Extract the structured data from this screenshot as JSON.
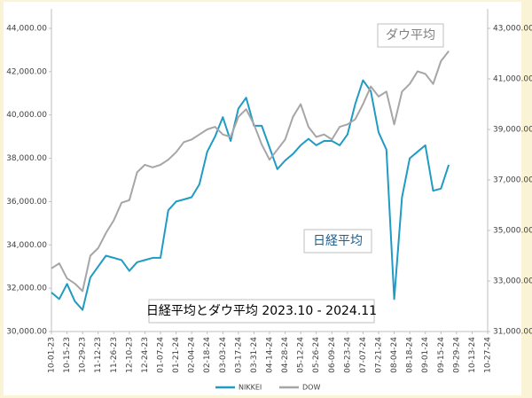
{
  "chart_data": {
    "type": "line",
    "annotations": [
      "ダウ平均",
      "日経平均",
      "日経平均とダウ平均 2023.10 - 2024.11"
    ],
    "categories": [
      "10-01-23",
      null,
      "10-15-23",
      null,
      "10-29-23",
      null,
      "11-12-23",
      null,
      "11-26-23",
      null,
      "12-10-23",
      null,
      "12-24-23",
      null,
      "01-07-24",
      null,
      "01-21-24",
      null,
      "02-04-24",
      null,
      "02-18-24",
      null,
      "03-03-24",
      null,
      "03-17-24",
      null,
      "03-31-24",
      null,
      "04-14-24",
      null,
      "04-28-24",
      null,
      "05-12-24",
      null,
      "05-26-24",
      null,
      "06-09-24",
      null,
      "06-23-24",
      null,
      "07-07-24",
      null,
      "07-21-24",
      null,
      "08-04-24",
      null,
      "08-18-24",
      null,
      "09-01-24",
      null,
      "09-15-24",
      null,
      "09-29-24",
      null,
      "10-13-24",
      null,
      "10-27-24"
    ],
    "series": [
      {
        "name": "NIKKEI",
        "color": "#1f9bc4",
        "axis": "y",
        "values": [
          31800,
          31500,
          32200,
          31400,
          31000,
          32500,
          33000,
          33500,
          33400,
          33300,
          32800,
          33200,
          33300,
          33400,
          33400,
          35600,
          36000,
          36100,
          36200,
          36800,
          38300,
          39000,
          39900,
          38800,
          40300,
          40800,
          39500,
          39500,
          38500,
          37500,
          37900,
          38200,
          38600,
          38900,
          38600,
          38800,
          38800,
          38600,
          39100,
          40500,
          41600,
          41100,
          39200,
          38400,
          31500,
          36200,
          38000,
          38300,
          38600,
          36500,
          36600,
          37700,
          null,
          null,
          null,
          null,
          null
        ]
      },
      {
        "name": "DOW",
        "color": "#a6a6a6",
        "axis": "y2",
        "values": [
          33500,
          33700,
          33100,
          32900,
          32600,
          34000,
          34300,
          34900,
          35400,
          36100,
          36200,
          37300,
          37600,
          37500,
          37600,
          37800,
          38100,
          38500,
          38600,
          38800,
          39000,
          39100,
          38800,
          38700,
          39500,
          39800,
          39200,
          38400,
          37800,
          38200,
          38600,
          39500,
          40000,
          39100,
          38700,
          38800,
          38600,
          39100,
          39200,
          39400,
          40000,
          40700,
          40300,
          40500,
          39200,
          40500,
          40800,
          41300,
          41200,
          40800,
          41700,
          42100,
          null,
          null,
          null,
          null,
          null
        ]
      }
    ],
    "ylim": [
      30000,
      44000
    ],
    "yticks": [
      {
        "value": 30000,
        "label": "30,000.00"
      },
      {
        "value": 32000,
        "label": "32,000.00"
      },
      {
        "value": 34000,
        "label": "34,000.00"
      },
      {
        "value": 36000,
        "label": "36,000.00"
      },
      {
        "value": 38000,
        "label": "38,000.00"
      },
      {
        "value": 40000,
        "label": "40,000.00"
      },
      {
        "value": 42000,
        "label": "42,000.00"
      },
      {
        "value": 44000,
        "label": "44,000.00"
      }
    ],
    "y2lim": [
      31000,
      43000
    ],
    "y2ticks": [
      {
        "value": 31000,
        "label": "31,000.00"
      },
      {
        "value": 33000,
        "label": "33,000.00"
      },
      {
        "value": 35000,
        "label": "35,000.00"
      },
      {
        "value": 37000,
        "label": "37,000.00"
      },
      {
        "value": 39000,
        "label": "39,000.00"
      },
      {
        "value": 41000,
        "label": "41,000.00"
      },
      {
        "value": 43000,
        "label": "43,000.00"
      }
    ],
    "grid": false,
    "legend": "bottom"
  }
}
